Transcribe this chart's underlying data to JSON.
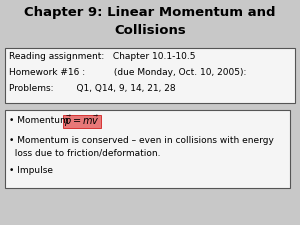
{
  "title_line1": "Chapter 9: Linear Momentum and",
  "title_line2": "Collisions",
  "title_fontsize": 9.5,
  "bg_color": "#c8c8c8",
  "box1_line1": "Reading assignment:   Chapter 10.1-10.5",
  "box1_line2": "Homework #16 :          (due Monday, Oct. 10, 2005):",
  "box1_line3": "Problems:        Q1, Q14, 9, 14, 21, 28",
  "box2_bullet1_pre": "• Momentum  ",
  "box2_formula": "$\\vec{p} = m\\vec{v}$",
  "box2_formula_bg": "#e87878",
  "box2_bullet2_line1": "• Momentum is conserved – even in collisions with energy",
  "box2_bullet2_line2": "  loss due to friction/deformation.",
  "box2_bullet3": "• Impulse",
  "text_fontsize": 6.5,
  "box_bg": "#f5f5f5",
  "box_border": "#555555"
}
